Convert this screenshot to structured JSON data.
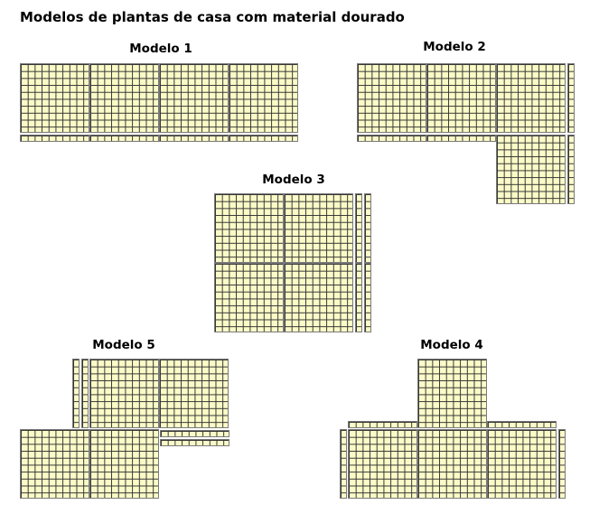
{
  "title": "Modelos de plantas de casa com material dourado",
  "colors": {
    "block_fill": "#fbfbc8",
    "grid_line": "#333333",
    "block_border": "#7a7a7a"
  },
  "models": [
    {
      "label": "Modelo 1",
      "flats": 4,
      "rods": 4
    },
    {
      "label": "Modelo 2",
      "flats": 4,
      "rods": 4
    },
    {
      "label": "Modelo 3",
      "flats": 4,
      "rods": 4
    },
    {
      "label": "Modelo 4",
      "flats": 4,
      "rods": 4
    },
    {
      "label": "Modelo 5",
      "flats": 4,
      "rods": 4
    }
  ]
}
